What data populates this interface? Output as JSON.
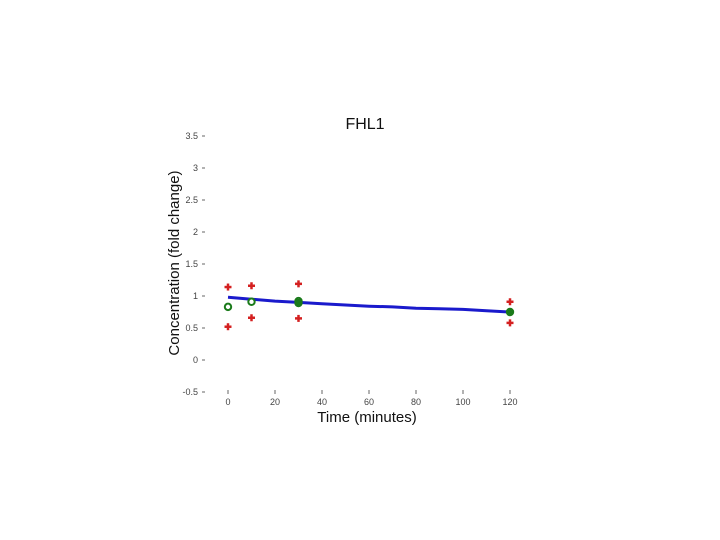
{
  "chart_data": {
    "type": "scatter",
    "title": "FHL1",
    "xlabel": "Time (minutes)",
    "ylabel": "Concentration (fold change)",
    "xlim": [
      0,
      120
    ],
    "ylim": [
      -0.5,
      3.5
    ],
    "x_ticks": [
      "0",
      "20",
      "40",
      "60",
      "80",
      "100",
      "120"
    ],
    "y_ticks": [
      "-0.5",
      "0",
      "0.5",
      "1",
      "1.5",
      "2",
      "2.5",
      "3",
      "3.5"
    ],
    "grid": false,
    "legend": "none",
    "colors": {
      "fit": "#1a1acc",
      "means": "#1a7a1a",
      "bounds": "#d42020"
    },
    "fit_line": {
      "x": [
        0,
        10,
        20,
        30,
        40,
        50,
        60,
        70,
        80,
        90,
        100,
        110,
        120
      ],
      "y": [
        0.98,
        0.95,
        0.92,
        0.9,
        0.88,
        0.86,
        0.84,
        0.83,
        0.81,
        0.8,
        0.79,
        0.77,
        0.75
      ]
    },
    "means": {
      "x": [
        0,
        10,
        30,
        30,
        120
      ],
      "y": [
        0.83,
        0.91,
        0.92,
        0.89,
        0.75
      ],
      "filled": [
        false,
        false,
        false,
        true,
        true
      ]
    },
    "upper_bounds": {
      "x": [
        0,
        10,
        30,
        120
      ],
      "y": [
        1.14,
        1.16,
        1.19,
        0.91
      ]
    },
    "lower_bounds": {
      "x": [
        0,
        10,
        30,
        120
      ],
      "y": [
        0.52,
        0.66,
        0.65,
        0.58
      ]
    }
  }
}
